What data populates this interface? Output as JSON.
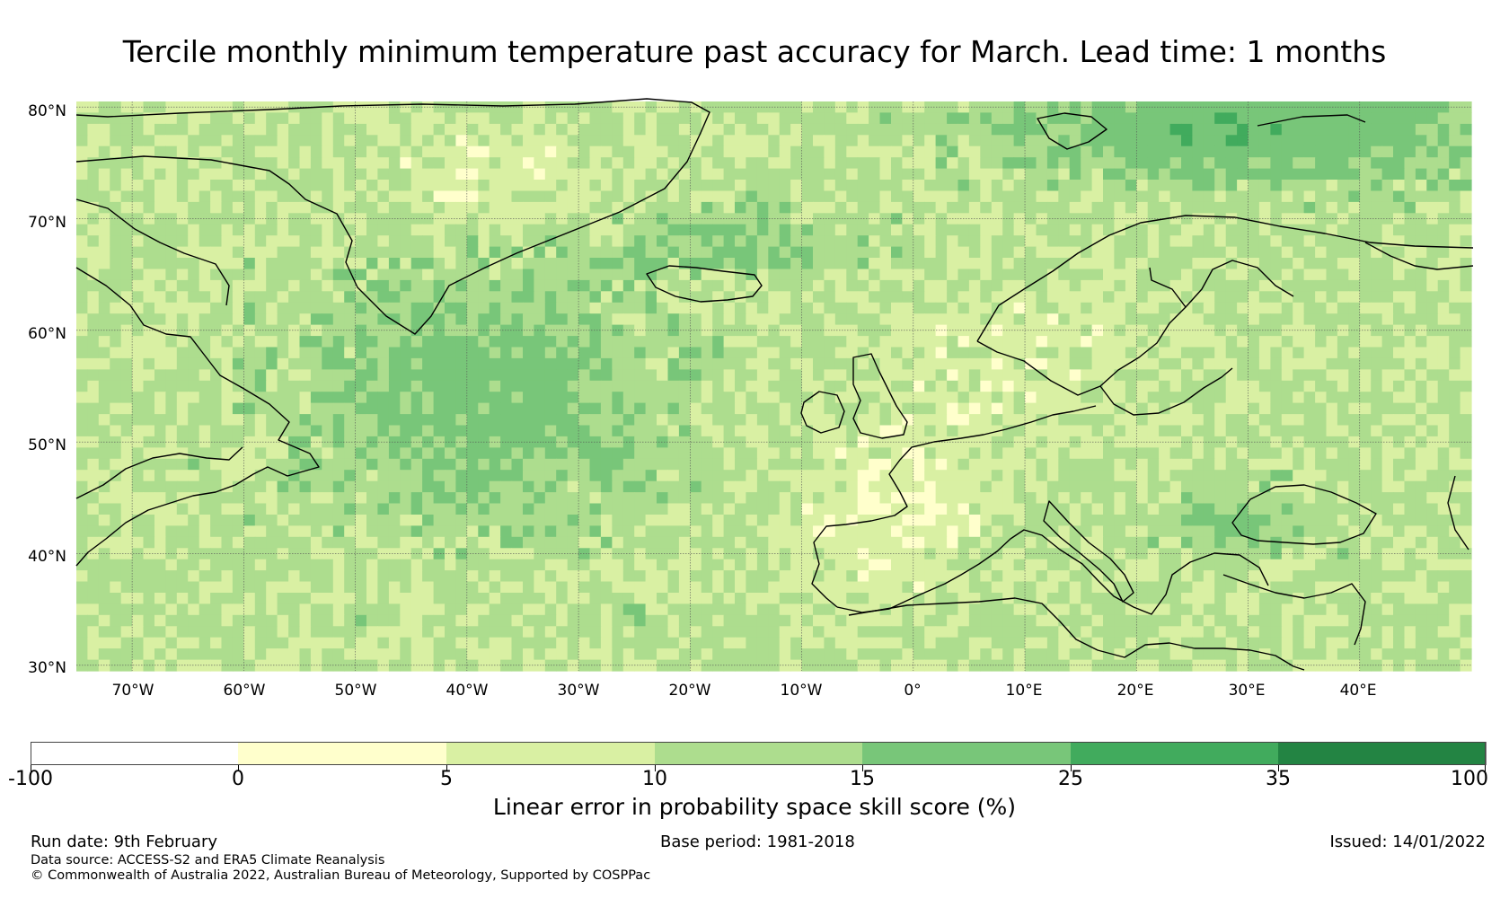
{
  "title": "Tercile monthly minimum temperature past accuracy for March. Lead time: 1 months",
  "map": {
    "lat_labels": [
      "80°N",
      "70°N",
      "60°N",
      "50°N",
      "40°N",
      "30°N"
    ],
    "lon_labels": [
      "70°W",
      "60°W",
      "50°W",
      "40°W",
      "30°W",
      "20°W",
      "10°W",
      "0°",
      "10°E",
      "20°E",
      "30°E",
      "40°E"
    ],
    "lon_range": [
      -75,
      50
    ],
    "lat_range": [
      29.5,
      80.5
    ]
  },
  "colorbar": {
    "title": "Linear error in probability space skill score (%)",
    "tick_labels": [
      "-100",
      "0",
      "5",
      "10",
      "15",
      "25",
      "35",
      "100"
    ],
    "colors": [
      "#ffffff",
      "#ffffcc",
      "#d9f0a3",
      "#addd8e",
      "#78c679",
      "#41ab5d",
      "#238443"
    ]
  },
  "footer": {
    "run_date": "Run date: 9th February",
    "base_period": "Base period: 1981-2018",
    "issued": "Issued: 14/01/2022",
    "data_source": "Data source: ACCESS-S2 and ERA5 Climate Reanalysis",
    "copyright": "© Commonwealth of Australia 2022, Australian Bureau of Meteorology, Supported by COSPPac"
  }
}
